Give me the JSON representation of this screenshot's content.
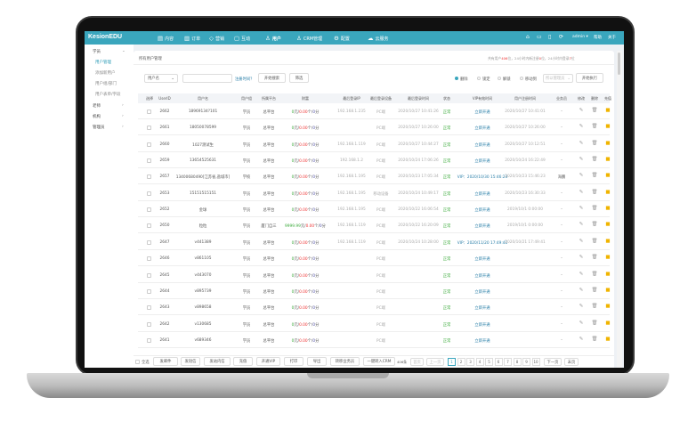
{
  "app": {
    "logo": "KesionEDU",
    "nav": [
      {
        "label": "内容",
        "icon": "document-icon"
      },
      {
        "label": "订单",
        "icon": "clipboard-icon"
      },
      {
        "label": "营销",
        "icon": "tag-icon"
      },
      {
        "label": "互动",
        "icon": "chat-icon"
      },
      {
        "label": "用户",
        "icon": "user-icon",
        "active": true
      },
      {
        "label": "CRM管理",
        "icon": "crm-icon"
      },
      {
        "label": "配置",
        "icon": "gear-icon"
      },
      {
        "label": "云服务",
        "icon": "cloud-icon"
      }
    ],
    "user": "admin ▾",
    "help": "帮助",
    "about": "关于",
    "accent": "#3aa6bd"
  },
  "sidebar": {
    "groups": [
      {
        "label": "学员",
        "expanded": true,
        "items": [
          "用户管理",
          "添加新用户",
          "用户组/部门",
          "用户表单/字段"
        ]
      },
      {
        "label": "老师"
      },
      {
        "label": "机构"
      },
      {
        "label": "管理员"
      }
    ]
  },
  "page": {
    "title": "所有用户管理",
    "stats": {
      "pre": "共有用户",
      "total": "406",
      "mid1": "位，24小时内新注册",
      "new": "0",
      "mid2": "位，24小时内登录",
      "login": "7",
      "post": "位"
    }
  },
  "filter": {
    "field": "用户名",
    "value": "",
    "reg_time_link": "注册时间？",
    "search": "开始搜索",
    "screen": "筛选"
  },
  "batch": {
    "actions": [
      "删除",
      "锁定",
      "解锁",
      "移动到"
    ],
    "selected": "删除",
    "target_placeholder": "所以管理员",
    "execute": "开始执行"
  },
  "table": {
    "headers": [
      "选择",
      "UserID",
      "用户名",
      "用户组",
      "所属平台",
      "财富",
      "最后登录IP",
      "最后登录设备",
      "最后登录时间",
      "状态",
      "VIP有效时间",
      "用户注册时间",
      "业务员",
      "修改",
      "删除",
      "充值"
    ],
    "rows": [
      {
        "id": "2662",
        "name": "18969134?101",
        "group": "学员",
        "platform": "总平台",
        "money": "0",
        "coupon": "0.00",
        "points": "0",
        "ip": "192.168.1.235",
        "device": "PC端",
        "last": "2020/10/27 10:41:26",
        "status": "正常",
        "vip": "立即开通",
        "reg": "2020/10/27 10:41:01",
        "sales": "-"
      },
      {
        "id": "2661",
        "name": "18050078599",
        "group": "学员",
        "platform": "总平台",
        "money": "0",
        "coupon": "0.00",
        "points": "0",
        "ip": "",
        "device": "PC端",
        "last": "2020/10/27 10:26:00",
        "status": "正常",
        "vip": "立即开通",
        "reg": "2020/10/27 10:26:00",
        "sales": "-"
      },
      {
        "id": "2660",
        "name": "1027测试生",
        "group": "学员",
        "platform": "总平台",
        "money": "0",
        "coupon": "0.00",
        "points": "0",
        "ip": "192.168.1.119",
        "device": "PC端",
        "last": "2020/10/27 10:44:27",
        "status": "正常",
        "vip": "立即开通",
        "reg": "2020/10/27 10:12:51",
        "sales": "-"
      },
      {
        "id": "2659",
        "name": "13654525631",
        "group": "学员",
        "platform": "总平台",
        "money": "0",
        "coupon": "0.00",
        "points": "0",
        "ip": "192.168.1.2",
        "device": "PC端",
        "last": "2020/10/24 17:06:26",
        "status": "正常",
        "vip": "立即开通",
        "reg": "2020/10/24 16:22:49",
        "sales": "-"
      },
      {
        "id": "2657",
        "name": "13400680490[江苏省,盐城市]",
        "group": "学校",
        "platform": "总平台",
        "money": "0",
        "coupon": "0.00",
        "points": "0",
        "ip": "192.168.1.195",
        "device": "PC端",
        "last": "2020/10/23 17:05:34",
        "status": "正常",
        "vip": "VIP：2020/10/30 15:46:23",
        "reg": "2020/10/23 15:46:23",
        "sales": "海鹏"
      },
      {
        "id": "2653",
        "name": "15151515151",
        "group": "学员",
        "platform": "总平台",
        "money": "0",
        "coupon": "0.00",
        "points": "0",
        "ip": "192.168.1.195",
        "device": "移动设备",
        "last": "2020/10/24 10:49:17",
        "status": "正常",
        "vip": "立即开通",
        "reg": "2020/10/23 16:30:33",
        "sales": "-"
      },
      {
        "id": "2652",
        "name": "金球",
        "group": "学员",
        "platform": "总平台",
        "money": "0",
        "coupon": "0.00",
        "points": "0",
        "ip": "192.168.1.195",
        "device": "PC端",
        "last": "2020/10/22 16:06:54",
        "status": "正常",
        "vip": "立即开通",
        "reg": "2019/10/1 0:00:00",
        "sales": "-"
      },
      {
        "id": "2650",
        "name": "粒粒",
        "group": "学员",
        "platform": "厦门自三",
        "money": "9999.99",
        "coupon": "0.00",
        "points": "0",
        "ip": "192.168.1.119",
        "device": "PC端",
        "last": "2020/10/22 16:20:09",
        "status": "正常",
        "vip": "立即开通",
        "reg": "2019/10/1 0:00:00",
        "sales": "-"
      },
      {
        "id": "2647",
        "name": "v441389",
        "group": "学员",
        "platform": "总平台",
        "money": "0",
        "coupon": "0.00",
        "points": "0",
        "ip": "192.168.1.119",
        "device": "PC端",
        "last": "2020/10/24 10:28:00",
        "status": "正常",
        "vip": "VIP：2020/11/20 17:49:41",
        "reg": "2020/10/21 17:49:41",
        "sales": "-"
      },
      {
        "id": "2646",
        "name": "v861105",
        "group": "学员",
        "platform": "总平台",
        "money": "0",
        "coupon": "0.00",
        "points": "0",
        "ip": "",
        "device": "PC端",
        "last": "",
        "status": "正常",
        "vip": "立即开通",
        "reg": "",
        "sales": "-"
      },
      {
        "id": "2645",
        "name": "v443070",
        "group": "学员",
        "platform": "总平台",
        "money": "0",
        "coupon": "0.00",
        "points": "0",
        "ip": "",
        "device": "PC端",
        "last": "",
        "status": "正常",
        "vip": "立即开通",
        "reg": "",
        "sales": "-"
      },
      {
        "id": "2644",
        "name": "v895739",
        "group": "学员",
        "platform": "总平台",
        "money": "0",
        "coupon": "0.00",
        "points": "0",
        "ip": "",
        "device": "PC端",
        "last": "",
        "status": "正常",
        "vip": "立即开通",
        "reg": "",
        "sales": "-"
      },
      {
        "id": "2643",
        "name": "v898658",
        "group": "学员",
        "platform": "总平台",
        "money": "0",
        "coupon": "0.00",
        "points": "0",
        "ip": "",
        "device": "PC端",
        "last": "",
        "status": "正常",
        "vip": "立即开通",
        "reg": "",
        "sales": "-"
      },
      {
        "id": "2642",
        "name": "v130685",
        "group": "学员",
        "platform": "总平台",
        "money": "0",
        "coupon": "0.00",
        "points": "0",
        "ip": "",
        "device": "PC端",
        "last": "",
        "status": "正常",
        "vip": "立即开通",
        "reg": "",
        "sales": "-"
      },
      {
        "id": "2641",
        "name": "v689346",
        "group": "学员",
        "platform": "总平台",
        "money": "0",
        "coupon": "0.00",
        "points": "0",
        "ip": "",
        "device": "PC端",
        "last": "",
        "status": "正常",
        "vip": "立即开通",
        "reg": "",
        "sales": "-"
      }
    ],
    "units": {
      "money": "元/",
      "coupon": "个/",
      "points": "分"
    }
  },
  "footer": {
    "select_all": "全选",
    "actions": [
      "发邮件",
      "发短信",
      "发站内信",
      "充值",
      "开通VIP",
      "打印",
      "导出",
      "转移业务员",
      "一键转入CRM"
    ],
    "count": "406条",
    "first": "首页",
    "prev": "上一页",
    "pages": [
      "1",
      "2",
      "3",
      "4",
      "5",
      "6",
      "7",
      "8",
      "9",
      "10"
    ],
    "current": "1",
    "next": "下一页",
    "last": "末页"
  }
}
